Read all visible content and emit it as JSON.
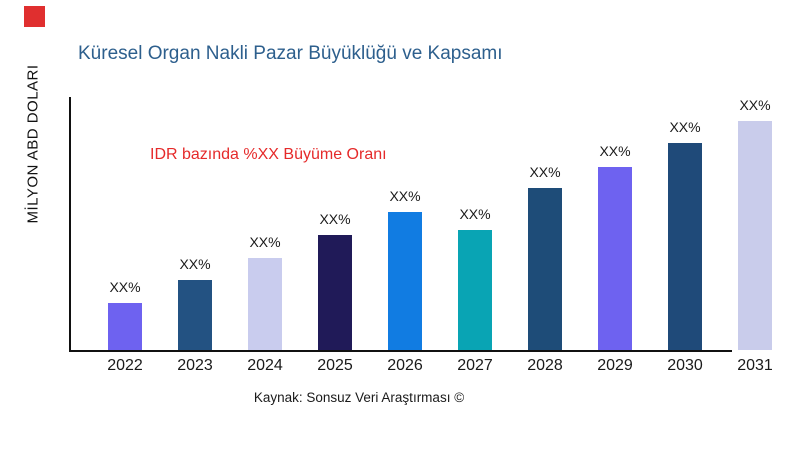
{
  "logo": {
    "color": "#e02f2f"
  },
  "header": {
    "title": "Küresel Organ Nakli Pazar Büyüklüğü ve Kapsamı",
    "title_color": "#2d5f8d"
  },
  "chart": {
    "y_axis_label": "MİLYON ABD DOLARI",
    "annotation_text": "IDR bazında %XX Büyüme Oranı",
    "annotation_color": "#e52a2a",
    "axis_color": "#111111"
  },
  "footer": {
    "source": "Kaynak: Sonsuz Veri Araştırması ©"
  },
  "chart_data": {
    "type": "bar",
    "title": "Küresel Organ Nakli Pazar Büyüklüğü ve Kapsamı",
    "xlabel": "",
    "ylabel": "MİLYON ABD DOLARI",
    "categories": [
      "2022",
      "2023",
      "2024",
      "2025",
      "2026",
      "2027",
      "2028",
      "2029",
      "2030",
      "2031"
    ],
    "values": [
      47,
      70,
      92,
      115,
      138,
      120,
      162,
      183,
      207,
      229
    ],
    "values_note": "numeric axis not labeled; values are relative bar heights estimated from pixels",
    "data_labels": [
      "XX%",
      "XX%",
      "XX%",
      "XX%",
      "XX%",
      "XX%",
      "XX%",
      "XX%",
      "XX%",
      "XX%"
    ],
    "bar_colors": [
      "#6e62f0",
      "#235282",
      "#c9ccee",
      "#201a58",
      "#117ce2",
      "#09a4b4",
      "#1e4c78",
      "#6e62f0",
      "#1f4a79",
      "#c9cceb"
    ],
    "annotation": "IDR bazında %XX Büyüme Oranı",
    "grid": false,
    "legend": false
  }
}
